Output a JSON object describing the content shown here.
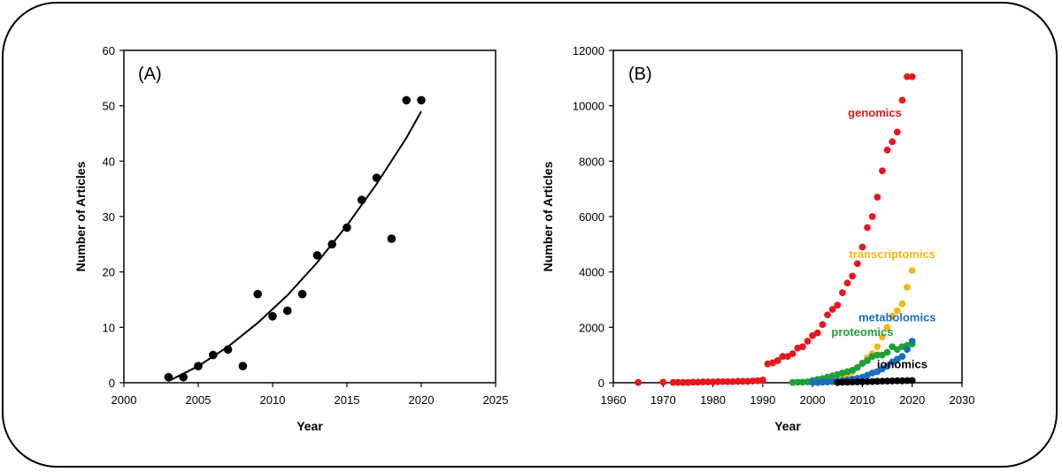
{
  "chart_data": [
    {
      "type": "scatter",
      "panel_label": "(A)",
      "xlabel": "Year",
      "ylabel": "Number of Articles",
      "xlim": [
        2000,
        2025
      ],
      "ylim": [
        0,
        60
      ],
      "xticks": [
        2000,
        2005,
        2010,
        2015,
        2020,
        2025
      ],
      "yticks": [
        0,
        10,
        20,
        30,
        40,
        50,
        60
      ],
      "grid": false,
      "series": [
        {
          "color": "#000000",
          "x": [
            2003,
            2004,
            2005,
            2006,
            2007,
            2008,
            2009,
            2010,
            2011,
            2012,
            2013,
            2014,
            2015,
            2016,
            2017,
            2018,
            2019,
            2020
          ],
          "y": [
            1,
            1,
            3,
            5,
            6,
            3,
            16,
            12,
            13,
            16,
            23,
            25,
            28,
            33,
            37,
            26,
            51,
            51
          ]
        }
      ],
      "trendline": {
        "color": "#000000",
        "x": [
          2003,
          2005,
          2007,
          2009,
          2011,
          2013,
          2015,
          2017,
          2019,
          2020
        ],
        "y": [
          0.3,
          3.0,
          6.5,
          10.8,
          15.8,
          21.7,
          28.4,
          35.9,
          44.2,
          49.0
        ]
      }
    },
    {
      "type": "scatter",
      "panel_label": "(B)",
      "xlabel": "Year",
      "ylabel": "Number of Articles",
      "xlim": [
        1960,
        2030
      ],
      "ylim": [
        0,
        12000
      ],
      "xticks": [
        1960,
        1970,
        1980,
        1990,
        2000,
        2010,
        2020,
        2030
      ],
      "yticks": [
        0,
        2000,
        4000,
        6000,
        8000,
        10000,
        12000
      ],
      "grid": false,
      "series": [
        {
          "name": "genomics",
          "color": "#e8181e",
          "x": [
            1965,
            1970,
            1972,
            1973,
            1974,
            1975,
            1976,
            1977,
            1978,
            1979,
            1980,
            1981,
            1982,
            1983,
            1984,
            1985,
            1986,
            1987,
            1988,
            1989,
            1990,
            1991,
            1992,
            1993,
            1994,
            1995,
            1996,
            1997,
            1998,
            1999,
            2000,
            2001,
            2002,
            2003,
            2004,
            2005,
            2006,
            2007,
            2008,
            2009,
            2010,
            2011,
            2012,
            2013,
            2014,
            2015,
            2016,
            2017,
            2018,
            2019,
            2020
          ],
          "y": [
            10,
            20,
            10,
            10,
            10,
            10,
            20,
            20,
            30,
            30,
            30,
            40,
            40,
            40,
            40,
            50,
            50,
            50,
            60,
            70,
            100,
            680,
            720,
            800,
            950,
            950,
            1050,
            1250,
            1300,
            1500,
            1700,
            1800,
            2100,
            2450,
            2650,
            2800,
            3250,
            3600,
            3850,
            4300,
            4900,
            5600,
            6000,
            6700,
            7650,
            8400,
            8700,
            9050,
            10200,
            11050,
            11050
          ]
        },
        {
          "name": "transcriptomics",
          "color": "#f5b816",
          "x": [
            2000,
            2001,
            2002,
            2003,
            2004,
            2005,
            2006,
            2007,
            2008,
            2009,
            2010,
            2011,
            2012,
            2013,
            2014,
            2015,
            2016,
            2017,
            2018,
            2019,
            2020
          ],
          "y": [
            10,
            20,
            40,
            70,
            100,
            150,
            200,
            300,
            400,
            550,
            700,
            900,
            1050,
            1300,
            1650,
            2000,
            2400,
            2600,
            2850,
            3450,
            4050
          ]
        },
        {
          "name": "proteomics",
          "color": "#1fa03a",
          "x": [
            1996,
            1997,
            1998,
            1999,
            2000,
            2001,
            2002,
            2003,
            2004,
            2005,
            2006,
            2007,
            2008,
            2009,
            2010,
            2011,
            2012,
            2013,
            2014,
            2015,
            2016,
            2017,
            2018,
            2019,
            2020
          ],
          "y": [
            10,
            20,
            20,
            30,
            80,
            120,
            150,
            200,
            250,
            300,
            350,
            400,
            450,
            550,
            700,
            800,
            950,
            1000,
            1000,
            1100,
            1300,
            1200,
            1300,
            1350,
            1400
          ]
        },
        {
          "name": "metabolomics",
          "color": "#1a6ebf",
          "x": [
            2000,
            2001,
            2002,
            2003,
            2004,
            2005,
            2006,
            2007,
            2008,
            2009,
            2010,
            2011,
            2012,
            2013,
            2014,
            2015,
            2016,
            2017,
            2018,
            2019,
            2020
          ],
          "y": [
            10,
            10,
            20,
            30,
            40,
            60,
            80,
            100,
            130,
            160,
            200,
            270,
            350,
            400,
            500,
            600,
            750,
            850,
            950,
            1200,
            1500
          ]
        },
        {
          "name": "ionomics",
          "color": "#000000",
          "x": [
            2005,
            2006,
            2007,
            2008,
            2009,
            2010,
            2011,
            2012,
            2013,
            2014,
            2015,
            2016,
            2017,
            2018,
            2019,
            2020
          ],
          "y": [
            10,
            15,
            20,
            25,
            30,
            35,
            40,
            45,
            50,
            55,
            60,
            65,
            70,
            70,
            75,
            80
          ]
        }
      ],
      "annotations": [
        {
          "text": "genomics",
          "color": "#e8181e",
          "x": 2012.5,
          "y": 9600
        },
        {
          "text": "transcriptomics",
          "color": "#f5b816",
          "x": 2016,
          "y": 4500
        },
        {
          "text": "metabolomics",
          "color": "#1a6ebf",
          "x": 2017,
          "y": 2220
        },
        {
          "text": "proteomics",
          "color": "#1fa03a",
          "x": 2010,
          "y": 1690
        },
        {
          "text": "ionomics",
          "color": "#000000",
          "x": 2018,
          "y": 520
        }
      ]
    }
  ]
}
